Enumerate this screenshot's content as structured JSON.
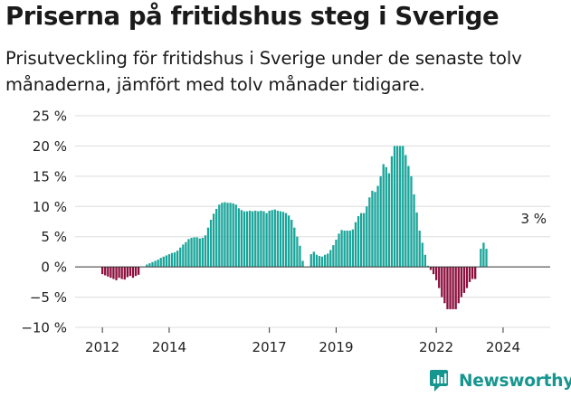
{
  "chart_data": {
    "type": "bar",
    "title": "Priserna på fritidshus steg i Sverige",
    "subtitle": "Prisutveckling för fritidshus i Sverige under de senaste tolv månaderna, jämfört med tolv månader tidigare.",
    "xlabel": "",
    "ylabel": "",
    "y_unit": "%",
    "ylim": [
      -10,
      25
    ],
    "y_ticks": [
      -10,
      -5,
      0,
      5,
      10,
      15,
      20,
      25
    ],
    "y_tick_labels": [
      "−10 %",
      "−5 %",
      "0 %",
      "5 %",
      "10 %",
      "15 %",
      "20 %",
      "25 %"
    ],
    "x_ticks": [
      "2012",
      "2014",
      "2017",
      "2019",
      "2022",
      "2024"
    ],
    "x_tick_months": [
      0,
      24,
      60,
      84,
      120,
      144
    ],
    "x_start": "2012-01",
    "frequency": "monthly",
    "grid": true,
    "colors": {
      "positive": "#1aa59a",
      "negative": "#8c0f3d",
      "grid": "#dddddd"
    },
    "annotations": [
      {
        "text": "3 %",
        "x": "2024-12",
        "y": 3
      }
    ],
    "values": [
      -1.2,
      -1.4,
      -1.6,
      -1.8,
      -2.0,
      -2.2,
      -1.8,
      -2.0,
      -2.1,
      -1.7,
      -1.5,
      -1.8,
      -1.5,
      -1.3,
      null,
      null,
      0.4,
      0.6,
      0.8,
      1.0,
      1.2,
      1.5,
      1.7,
      1.9,
      2.1,
      2.3,
      2.4,
      2.7,
      3.2,
      3.7,
      4.1,
      4.6,
      4.8,
      4.9,
      4.9,
      4.7,
      4.8,
      5.2,
      6.5,
      7.8,
      8.8,
      9.6,
      10.3,
      10.6,
      10.7,
      10.6,
      10.6,
      10.5,
      10.3,
      9.7,
      9.4,
      9.2,
      9.2,
      9.3,
      9.2,
      9.3,
      9.2,
      9.3,
      9.2,
      8.9,
      9.3,
      9.4,
      9.5,
      9.3,
      9.2,
      9.1,
      8.9,
      8.5,
      7.8,
      6.5,
      5.0,
      3.5,
      1.0,
      null,
      null,
      2.1,
      2.5,
      2.0,
      1.8,
      1.7,
      2.0,
      2.2,
      2.8,
      3.6,
      4.5,
      5.5,
      6.1,
      6.0,
      6.0,
      6.0,
      6.2,
      7.4,
      8.4,
      8.9,
      8.9,
      10.0,
      11.5,
      12.6,
      12.4,
      13.4,
      15.0,
      17.0,
      16.5,
      15.5,
      18.3,
      20.0,
      20.0,
      20.0,
      20.0,
      18.5,
      16.7,
      15.0,
      12.0,
      9.0,
      6.0,
      4.0,
      2.0,
      0.2,
      -0.5,
      -1.2,
      -2.2,
      -3.5,
      -5.0,
      -6.0,
      -7.0,
      -7.0,
      -7.0,
      -7.0,
      -6.0,
      -5.0,
      -4.3,
      -3.5,
      -2.5,
      -2.0,
      -2.0,
      null,
      3.0,
      4.0,
      3.0
    ]
  },
  "brand": {
    "name": "Newsworthy",
    "icon": "newsworthy-logo-icon"
  }
}
